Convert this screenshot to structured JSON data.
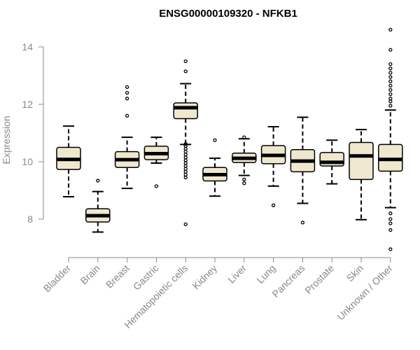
{
  "chart_data": {
    "type": "boxplot",
    "title": "ENSG00000109320 - NFKB1",
    "xlabel": "",
    "ylabel": "Expression",
    "ylim": [
      6.7,
      14.9
    ],
    "yticks": [
      8,
      10,
      12,
      14
    ],
    "colors": {
      "box_fill": "#efe8cf",
      "box_stroke": "#000000",
      "axis": "#888888"
    },
    "categories": [
      "Bladder",
      "Brain",
      "Breast",
      "Gastric",
      "Hematopoietic cells",
      "Kidney",
      "Liver",
      "Lung",
      "Pancreas",
      "Prostate",
      "Skin",
      "Unknown / Other"
    ],
    "boxes": [
      {
        "category": "Bladder",
        "whisker_low": 8.78,
        "q1": 9.73,
        "median": 10.08,
        "q3": 10.5,
        "whisker_high": 11.24,
        "outliers": []
      },
      {
        "category": "Brain",
        "whisker_low": 7.55,
        "q1": 7.9,
        "median": 8.12,
        "q3": 8.36,
        "whisker_high": 8.96,
        "outliers": [
          9.34
        ]
      },
      {
        "category": "Breast",
        "whisker_low": 9.07,
        "q1": 9.8,
        "median": 10.07,
        "q3": 10.35,
        "whisker_high": 10.85,
        "outliers": [
          11.6,
          12.2,
          12.4,
          12.6
        ]
      },
      {
        "category": "Gastric",
        "whisker_low": 9.95,
        "q1": 10.07,
        "median": 10.28,
        "q3": 10.54,
        "whisker_high": 10.85,
        "outliers": [
          9.15
        ]
      },
      {
        "category": "Hematopoietic cells",
        "whisker_low": 10.6,
        "q1": 11.5,
        "median": 11.88,
        "q3": 12.05,
        "whisker_high": 12.72,
        "outliers": [
          13.15,
          13.5,
          7.82,
          9.45,
          9.55,
          9.65,
          9.75,
          9.85,
          9.95,
          10.05,
          10.15,
          10.25,
          10.35,
          10.45,
          10.55,
          10.62
        ]
      },
      {
        "category": "Kidney",
        "whisker_low": 8.8,
        "q1": 9.33,
        "median": 9.55,
        "q3": 9.8,
        "whisker_high": 10.12,
        "outliers": [
          10.75
        ]
      },
      {
        "category": "Liver",
        "whisker_low": 9.52,
        "q1": 9.97,
        "median": 10.12,
        "q3": 10.3,
        "whisker_high": 10.8,
        "outliers": [
          9.25,
          9.38,
          10.85
        ]
      },
      {
        "category": "Lung",
        "whisker_low": 9.15,
        "q1": 9.93,
        "median": 10.22,
        "q3": 10.56,
        "whisker_high": 11.22,
        "outliers": [
          8.48
        ]
      },
      {
        "category": "Pancreas",
        "whisker_low": 8.55,
        "q1": 9.65,
        "median": 10.02,
        "q3": 10.42,
        "whisker_high": 11.55,
        "outliers": [
          7.88
        ]
      },
      {
        "category": "Prostate",
        "whisker_low": 9.23,
        "q1": 9.85,
        "median": 9.98,
        "q3": 10.32,
        "whisker_high": 10.75,
        "outliers": []
      },
      {
        "category": "Skin",
        "whisker_low": 7.98,
        "q1": 9.38,
        "median": 10.2,
        "q3": 10.67,
        "whisker_high": 11.12,
        "outliers": []
      },
      {
        "category": "Unknown / Other",
        "whisker_low": 8.4,
        "q1": 9.67,
        "median": 10.08,
        "q3": 10.6,
        "whisker_high": 11.8,
        "outliers": [
          14.6,
          13.9,
          13.4,
          13.25,
          13.1,
          12.95,
          12.8,
          12.65,
          12.5,
          12.35,
          12.2,
          12.1,
          11.95,
          8.2,
          8.0,
          7.85,
          7.62,
          6.95
        ]
      }
    ]
  }
}
